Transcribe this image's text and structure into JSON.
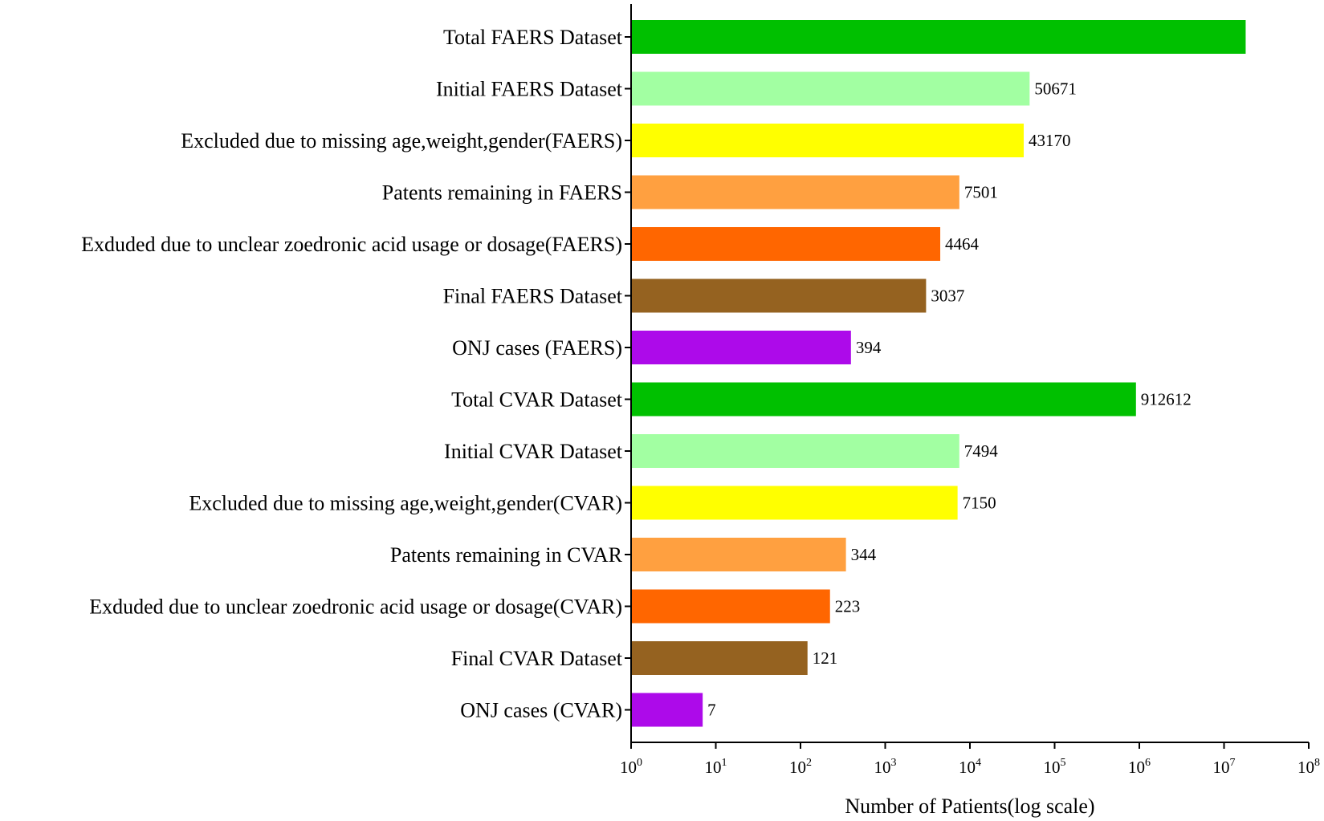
{
  "chart_data": {
    "type": "bar",
    "orientation": "horizontal",
    "xlabel": "Number of Patients(log scale)",
    "ylabel": "",
    "xscale": "log",
    "xlim": [
      1,
      100000000
    ],
    "grid": false,
    "x_ticks": [
      {
        "base": "10",
        "exp": "0",
        "value": 1
      },
      {
        "base": "10",
        "exp": "1",
        "value": 10
      },
      {
        "base": "10",
        "exp": "2",
        "value": 100
      },
      {
        "base": "10",
        "exp": "3",
        "value": 1000
      },
      {
        "base": "10",
        "exp": "4",
        "value": 10000
      },
      {
        "base": "10",
        "exp": "5",
        "value": 100000
      },
      {
        "base": "10",
        "exp": "6",
        "value": 1000000
      },
      {
        "base": "10",
        "exp": "7",
        "value": 10000000
      },
      {
        "base": "10",
        "exp": "8",
        "value": 100000000
      }
    ],
    "bars": [
      {
        "category": "Total FAERS Dataset",
        "value": 18000000,
        "label": "",
        "color": "#00c000"
      },
      {
        "category": "Initial FAERS Dataset",
        "value": 50671,
        "label": "50671",
        "color": "#a2ffa2"
      },
      {
        "category": "Excluded due to missing age,weight,gender(FAERS)",
        "value": 43170,
        "label": "43170",
        "color": "#ffff00"
      },
      {
        "category": "Patents remaining in FAERS",
        "value": 7501,
        "label": "7501",
        "color": "#ffa040"
      },
      {
        "category": "Exduded due to unclear zoedronic acid usage or dosage(FAERS)",
        "value": 4464,
        "label": "4464",
        "color": "#ff6600"
      },
      {
        "category": "Final FAERS Dataset",
        "value": 3037,
        "label": "3037",
        "color": "#956220"
      },
      {
        "category": "ONJ cases (FAERS)",
        "value": 394,
        "label": "394",
        "color": "#ad0aea"
      },
      {
        "category": "Total CVAR Dataset",
        "value": 912612,
        "label": "912612",
        "color": "#00c000"
      },
      {
        "category": "Initial CVAR Dataset",
        "value": 7494,
        "label": "7494",
        "color": "#a2ffa2"
      },
      {
        "category": "Excluded due to missing age,weight,gender(CVAR)",
        "value": 7150,
        "label": "7150",
        "color": "#ffff00"
      },
      {
        "category": "Patents remaining in CVAR",
        "value": 344,
        "label": "344",
        "color": "#ffa040"
      },
      {
        "category": "Exduded due to unclear zoedronic acid usage or dosage(CVAR)",
        "value": 223,
        "label": "223",
        "color": "#ff6600"
      },
      {
        "category": "Final CVAR Dataset",
        "value": 121,
        "label": "121",
        "color": "#956220"
      },
      {
        "category": "ONJ cases (CVAR)",
        "value": 7,
        "label": "7",
        "color": "#ad0aea"
      }
    ]
  }
}
